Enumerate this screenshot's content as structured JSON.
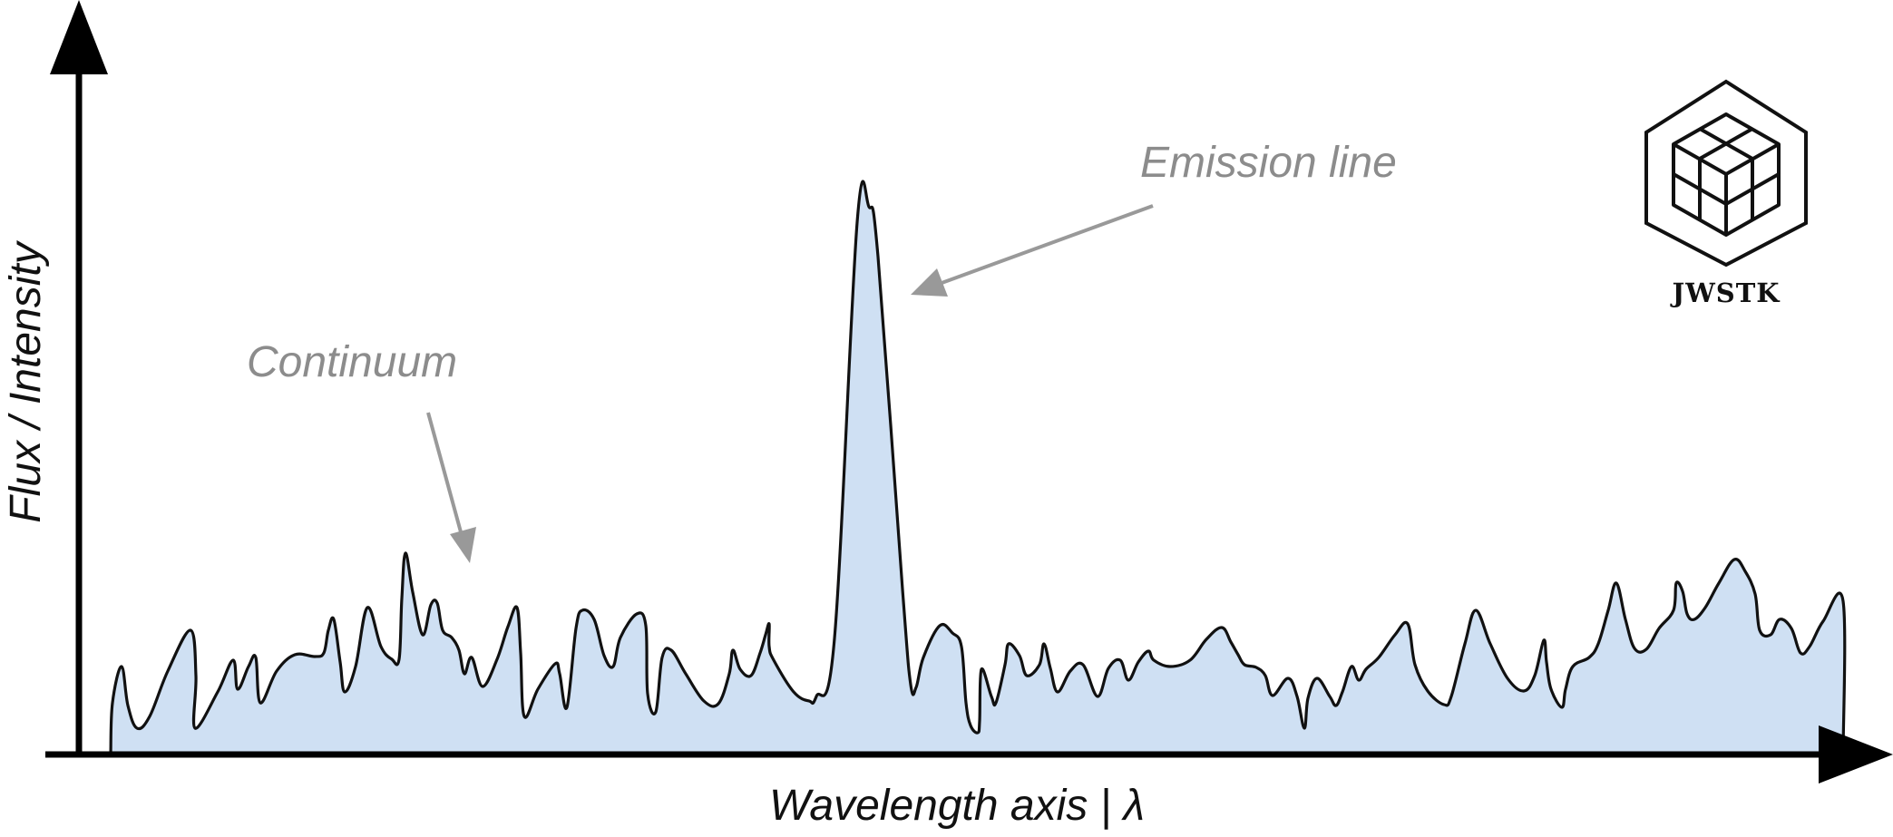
{
  "x_axis_label": "Wavelength axis | λ",
  "y_axis_label": "Flux / Intensity",
  "annotations": {
    "emission": "Emission line",
    "continuum": "Continuum"
  },
  "logo": {
    "text": "JWSTK",
    "icon": "hexagon-cubes-icon"
  },
  "colors": {
    "fill": "#cfe0f3",
    "line": "#111111",
    "annotation": "#8c8c8c"
  }
}
